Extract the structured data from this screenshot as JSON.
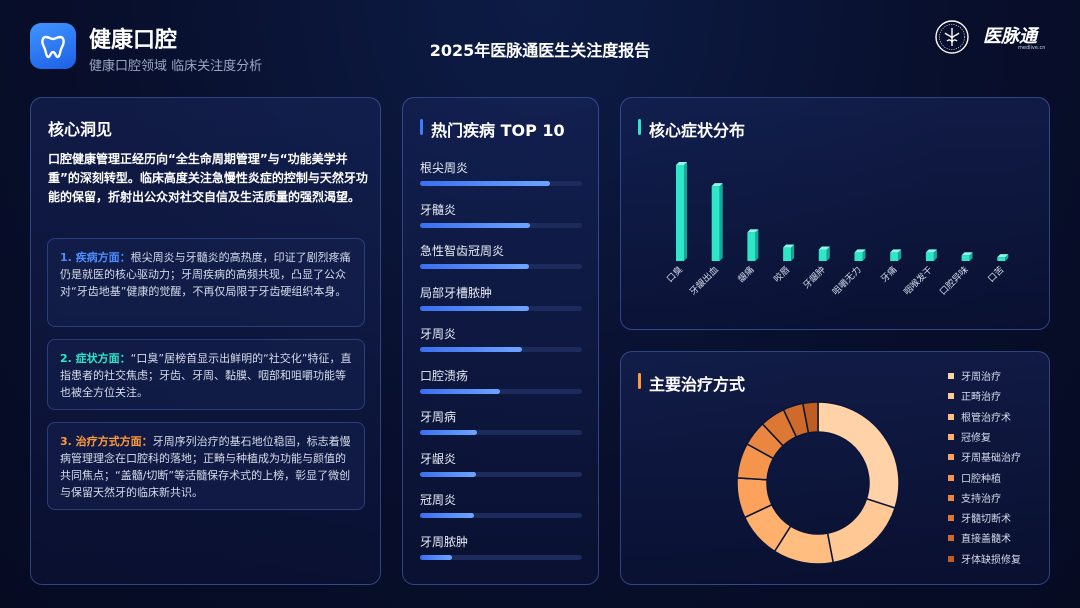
{
  "header": {
    "app_title": "健康口腔",
    "app_subtitle": "健康口腔领域 临床关注度分析",
    "report_title": "2025年医脉通医生关注度报告",
    "logo_text": "医脉通",
    "logo_url": "medlive.cn"
  },
  "insights": {
    "title": "核心洞见",
    "intro": "口腔健康管理正经历向“全生命周期管理”与“功能美学并重”的深刻转型。临床高度关注急慢性炎症的控制与天然牙功能的保留，折射出公众对社交自信及生活质量的强烈渴望。",
    "items": [
      {
        "heading": "1. 疾病方面：",
        "text": "根尖周炎与牙髓炎的高热度，印证了剧烈疼痛仍是就医的核心驱动力；牙周疾病的高频共现，凸显了公众对“牙齿地基”健康的觉醒，不再仅局限于牙齿硬组织本身。",
        "color": "#4d8dff"
      },
      {
        "heading": "2. 症状方面：",
        "text": "“口臭”居榜首显示出鲜明的“社交化”特征，直指患者的社交焦虑；牙齿、牙周、黏膜、咽部和咀嚼功能等也被全方位关注。",
        "color": "#2ee6c8"
      },
      {
        "heading": "3. 治疗方式方面：",
        "text": "牙周序列治疗的基石地位稳固，标志着慢病管理理念在口腔科的落地；正畸与种植成为功能与颜值的共同焦点；“盖髓/切断”等活髓保存术式的上榜，彰显了微创与保留天然牙的临床新共识。",
        "color": "#ff9a3c"
      }
    ]
  },
  "top10": {
    "title": "热门疾病 TOP 10",
    "accent": "#3d7bff"
  },
  "symptoms": {
    "title": "核心症状分布",
    "accent": "#2ee6c8"
  },
  "treatments": {
    "title": "主要治疗方式",
    "accent": "#ff9a3c"
  },
  "chart_data": [
    {
      "type": "bar",
      "orientation": "horizontal",
      "title": "热门疾病 TOP 10",
      "categories": [
        "根尖周炎",
        "牙髓炎",
        "急性智齿冠周炎",
        "局部牙槽脓肿",
        "牙周炎",
        "口腔溃疡",
        "牙周病",
        "牙龈炎",
        "冠周炎",
        "牙周脓肿"
      ],
      "values": [
        100,
        85,
        84,
        84,
        79,
        62,
        44,
        43,
        42,
        25
      ],
      "xlim": [
        0,
        125
      ],
      "color": "#4f86ff"
    },
    {
      "type": "bar",
      "title": "核心症状分布",
      "categories": [
        "口臭",
        "牙龈出血",
        "龈痛",
        "咬唇",
        "牙龈肿",
        "咀嚼无力",
        "牙痛",
        "咽喉发干",
        "口腔异味",
        "口苦"
      ],
      "values": [
        100,
        78,
        30,
        14,
        12,
        9,
        9,
        9,
        6,
        4
      ],
      "ylim": [
        0,
        100
      ],
      "color": "#2ee6c8"
    },
    {
      "type": "pie",
      "donut": true,
      "title": "主要治疗方式",
      "categories": [
        "牙周治疗",
        "正畸治疗",
        "根管治疗术",
        "冠修复",
        "牙周基础治疗",
        "口腔种植",
        "支持治疗",
        "牙髓切断术",
        "直接盖髓术",
        "牙体缺损修复"
      ],
      "values": [
        30,
        17,
        12,
        9,
        8,
        7,
        5,
        5,
        4,
        3
      ],
      "colors": [
        "#ffd2a8",
        "#ffc894",
        "#ffbd80",
        "#ffb06c",
        "#fca25c",
        "#f5944c",
        "#ea8640",
        "#dd7834",
        "#cf6b2a",
        "#c05e22"
      ]
    }
  ]
}
